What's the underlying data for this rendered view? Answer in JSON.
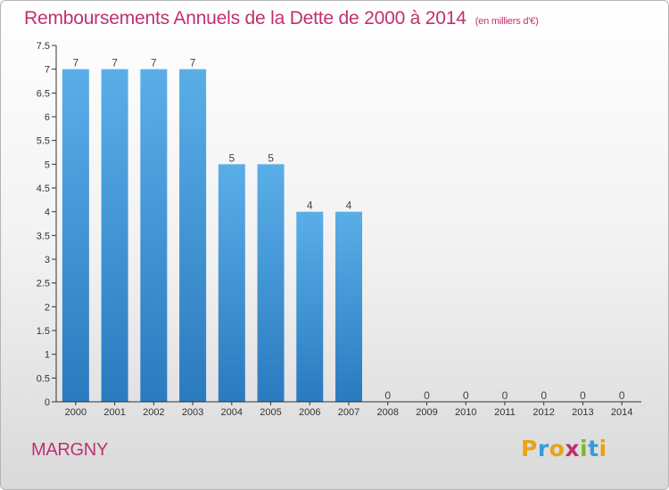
{
  "header": {
    "title": "Remboursements Annuels de la Dette de 2000 à 2014",
    "subtitle": "(en milliers d'€)"
  },
  "footer": {
    "commune": "MARGNY",
    "brand": "Proxiti"
  },
  "colors": {
    "title": "#c0306f",
    "bar_top": "#5aaee8",
    "bar_bottom": "#2a7bbf",
    "brand_letters": [
      "#e8a317",
      "#3a9ad9",
      "#e8a317",
      "#c0306f",
      "#7ab82e",
      "#3a9ad9",
      "#e8a317"
    ]
  },
  "chart_data": {
    "type": "bar",
    "categories": [
      "2000",
      "2001",
      "2002",
      "2003",
      "2004",
      "2005",
      "2006",
      "2007",
      "2008",
      "2009",
      "2010",
      "2011",
      "2012",
      "2013",
      "2014"
    ],
    "values": [
      7,
      7,
      7,
      7,
      5,
      5,
      4,
      4,
      0,
      0,
      0,
      0,
      0,
      0,
      0
    ],
    "data_labels": [
      "7",
      "7",
      "7",
      "7",
      "5",
      "5",
      "4",
      "4",
      "0",
      "0",
      "0",
      "0",
      "0",
      "0",
      "0"
    ],
    "ylim": [
      0,
      7.5
    ],
    "yticks": [
      "0",
      "0.5",
      "1",
      "1.5",
      "2",
      "2.5",
      "3",
      "3.5",
      "4",
      "4.5",
      "5",
      "5.5",
      "6",
      "6.5",
      "7",
      "7.5"
    ],
    "grid": false
  }
}
